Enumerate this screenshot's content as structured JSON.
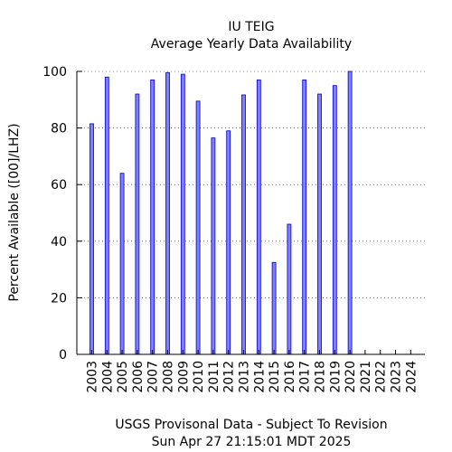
{
  "chart_data": {
    "type": "bar",
    "title": "IU TEIG",
    "subtitle": "Average Yearly Data Availability",
    "ylabel": "Percent Available ([00]/LHZ)",
    "xlabel": "USGS Provisonal Data - Subject To Revision",
    "footer": "Sun Apr 27 21:15:01 MDT 2025",
    "ylim": [
      0,
      100
    ],
    "yticks": [
      "0",
      "20",
      "40",
      "60",
      "80",
      "100"
    ],
    "grid": "horizontal-dotted",
    "bar_color": "#7f7fff",
    "bar_edge_color": "#0000cc",
    "categories": [
      "2003",
      "2004",
      "2005",
      "2006",
      "2007",
      "2008",
      "2009",
      "2010",
      "2011",
      "2012",
      "2013",
      "2014",
      "2015",
      "2016",
      "2017",
      "2018",
      "2019",
      "2020",
      "2021",
      "2022",
      "2023",
      "2024"
    ],
    "values": [
      81.5,
      98,
      64,
      92,
      97,
      99.6,
      99,
      89.5,
      76.5,
      79,
      91.7,
      97,
      32.5,
      46,
      97,
      92,
      95,
      100,
      0,
      0,
      0,
      0
    ]
  }
}
